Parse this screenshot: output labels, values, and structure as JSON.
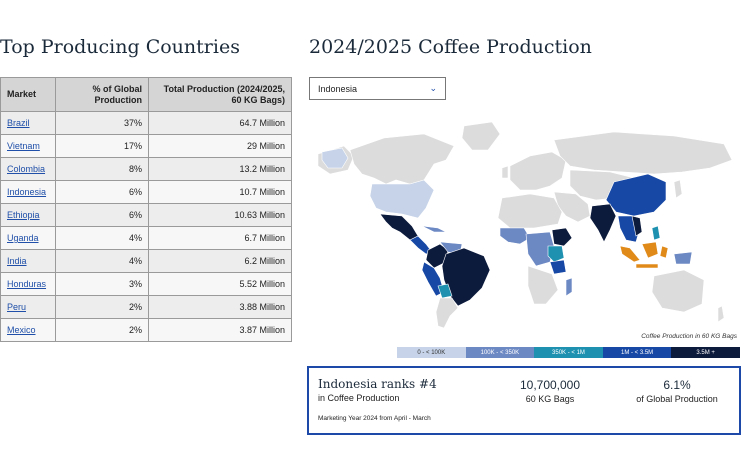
{
  "left_title": "Top Producing Countries",
  "right_title": "2024/2025 Coffee Production",
  "table": {
    "headers": [
      "Market",
      "% of Global Production",
      "Total Production (2024/2025, 60 KG Bags)"
    ],
    "rows": [
      {
        "market": "Brazil",
        "pct": "37%",
        "total": "64.7 Million"
      },
      {
        "market": "Vietnam",
        "pct": "17%",
        "total": "29 Million"
      },
      {
        "market": "Colombia",
        "pct": "8%",
        "total": "13.2 Million"
      },
      {
        "market": "Indonesia",
        "pct": "6%",
        "total": "10.7 Million"
      },
      {
        "market": "Ethiopia",
        "pct": "6%",
        "total": "10.63 Million"
      },
      {
        "market": "Uganda",
        "pct": "4%",
        "total": "6.7 Million"
      },
      {
        "market": "India",
        "pct": "4%",
        "total": "6.2 Million"
      },
      {
        "market": "Honduras",
        "pct": "3%",
        "total": "5.52 Million"
      },
      {
        "market": "Peru",
        "pct": "2%",
        "total": "3.88 Million"
      },
      {
        "market": "Mexico",
        "pct": "2%",
        "total": "3.87 Million"
      }
    ]
  },
  "country_select": {
    "value": "Indonesia"
  },
  "map": {
    "legend_title": "Coffee Production in 60 KG Bags",
    "legend": [
      {
        "label": "0 - < 100K",
        "color": "#c6d3e8",
        "text_color": "#333333"
      },
      {
        "label": "100K - < 350K",
        "color": "#6d89c4",
        "text_color": "#ffffff"
      },
      {
        "label": "350K - < 1M",
        "color": "#1e91b0",
        "text_color": "#ffffff"
      },
      {
        "label": "1M - < 3.5M",
        "color": "#1748a6",
        "text_color": "#ffffff"
      },
      {
        "label": "3.5M +",
        "color": "#0c1a3c",
        "text_color": "#ffffff"
      }
    ],
    "land_color": "#dcdcdc",
    "highlight_color": "#e08a1a"
  },
  "rank_card": {
    "title": "Indonesia ranks #4",
    "subtitle": "in Coffee Production",
    "note": "Marketing Year 2024 from April - March",
    "stat1_value": "10,700,000",
    "stat1_label": "60 KG Bags",
    "stat2_value": "6.1%",
    "stat2_label": "of Global Production"
  }
}
